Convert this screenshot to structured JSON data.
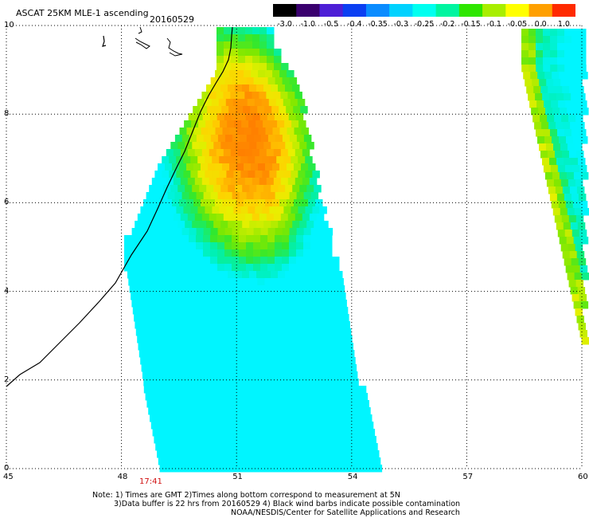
{
  "title": {
    "product": "ASCAT 25KM MLE-1 ascending",
    "date": "20160529"
  },
  "colorbar": {
    "labels": [
      "-3.0",
      "-1.0",
      "-0.5",
      "-0.4",
      "-0.35",
      "-0.3",
      "-0.25",
      "-0.2",
      "-0.15",
      "-0.1",
      "-0.05",
      "0.0",
      "1.0"
    ],
    "colors": [
      "#000000",
      "#3a006e",
      "#4d1fd6",
      "#0b3ff2",
      "#0a8cff",
      "#00d2ff",
      "#00fff0",
      "#00f5a0",
      "#2ee600",
      "#a8ee00",
      "#ffff00",
      "#ffa000",
      "#ff2a00"
    ]
  },
  "axes": {
    "x_ticks": [
      "45",
      "48",
      "51",
      "54",
      "57",
      "60"
    ],
    "y_ticks": [
      "0",
      "2",
      "4",
      "6",
      "8",
      "10"
    ],
    "x_range": [
      45,
      60
    ],
    "y_range": [
      0,
      10
    ],
    "grid": true
  },
  "time_label": "17:41",
  "notes": [
    "Note: 1) Times are GMT 2)Times along bottom correspond to measurement at 5N",
    "3)Data buffer is 22 hrs from 20160529 4) Black wind barbs indicate possible contamination",
    "NOAA/NESDIS/Center for Satellite Applications and Research"
  ],
  "colors": {
    "coastline": "#000000",
    "grid": "#000000",
    "time_label": "#d01010"
  }
}
